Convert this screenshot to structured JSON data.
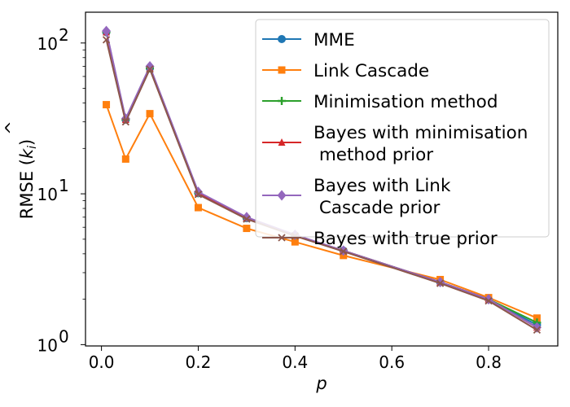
{
  "chart_data": {
    "type": "line",
    "title": "",
    "xlabel": "p",
    "ylabel": "RMSE (k̂ᵢ)",
    "ylabel_main": "RMSE (",
    "ylabel_k": "k",
    "ylabel_hat": "^",
    "ylabel_sub": "i",
    "ylabel_close": ")",
    "yscale": "log",
    "xlim": [
      -0.033,
      0.943
    ],
    "ylim": [
      0.98,
      160
    ],
    "grid": false,
    "legend_position": "top-right",
    "x_ticks": [
      {
        "value": 0.0,
        "label": "0.0"
      },
      {
        "value": 0.2,
        "label": "0.2"
      },
      {
        "value": 0.4,
        "label": "0.4"
      },
      {
        "value": 0.6,
        "label": "0.6"
      },
      {
        "value": 0.8,
        "label": "0.8"
      }
    ],
    "y_ticks": [
      {
        "value": 1,
        "base": "10",
        "exp": "0"
      },
      {
        "value": 10,
        "base": "10",
        "exp": "1"
      },
      {
        "value": 100,
        "base": "10",
        "exp": "2"
      }
    ],
    "x": [
      0.01,
      0.05,
      0.1,
      0.2,
      0.3,
      0.4,
      0.5,
      0.7,
      0.8,
      0.9
    ],
    "series": [
      {
        "name": "MME",
        "color": "#1f77b4",
        "marker": "circle",
        "values": [
          118,
          31,
          68,
          10.1,
          6.9,
          5.3,
          4.2,
          2.6,
          2.0,
          1.35
        ]
      },
      {
        "name": "Link Cascade",
        "color": "#ff7f0e",
        "marker": "square",
        "values": [
          39,
          17,
          34,
          8.1,
          5.9,
          4.8,
          3.9,
          2.7,
          2.05,
          1.5
        ]
      },
      {
        "name": "Minimisation method",
        "color": "#2ca02c",
        "marker": "plus",
        "values": [
          118,
          31,
          68,
          10.1,
          6.9,
          5.3,
          4.2,
          2.6,
          2.0,
          1.4
        ]
      },
      {
        "name": "Bayes with minimisation\n method prior",
        "color": "#d62728",
        "marker": "triangle",
        "values": [
          118,
          31,
          68,
          10.1,
          6.9,
          5.3,
          4.2,
          2.6,
          2.0,
          1.3
        ]
      },
      {
        "name": "Bayes with Link\n Cascade prior",
        "color": "#9467bd",
        "marker": "diamond",
        "values": [
          120,
          31.5,
          70,
          10.3,
          7.0,
          5.35,
          4.2,
          2.6,
          2.0,
          1.3
        ]
      },
      {
        "name": "Bayes with true prior",
        "color": "#8c564b",
        "marker": "x",
        "values": [
          105,
          30,
          67,
          9.9,
          6.8,
          5.25,
          4.15,
          2.55,
          1.95,
          1.25
        ]
      }
    ]
  }
}
